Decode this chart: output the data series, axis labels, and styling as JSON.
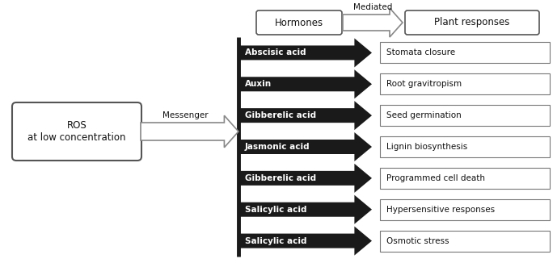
{
  "hormones": [
    "Abscisic acid",
    "Auxin",
    "Gibberelic acid",
    "Jasmonic acid",
    "Gibberelic acid",
    "Salicylic acid",
    "Salicylic acid"
  ],
  "responses": [
    "Stomata closure",
    "Root gravitropism",
    "Seed germination",
    "Lignin biosynthesis",
    "Programmed cell death",
    "Hypersensitive responses",
    "Osmotic stress"
  ],
  "ros_label": "ROS\nat low concentration",
  "messenger_label": "Messenger",
  "mediated_label": "Mediated",
  "hormones_box_label": "Hormones",
  "plant_responses_box_label": "Plant responses",
  "bg_color": "#ffffff",
  "box_facecolor": "#ffffff",
  "box_edgecolor": "#555555",
  "arrow_black": "#1a1a1a",
  "text_color": "#111111",
  "header_text_color": "#111111",
  "white_arrow_face": "#ffffff",
  "white_arrow_edge": "#888888"
}
